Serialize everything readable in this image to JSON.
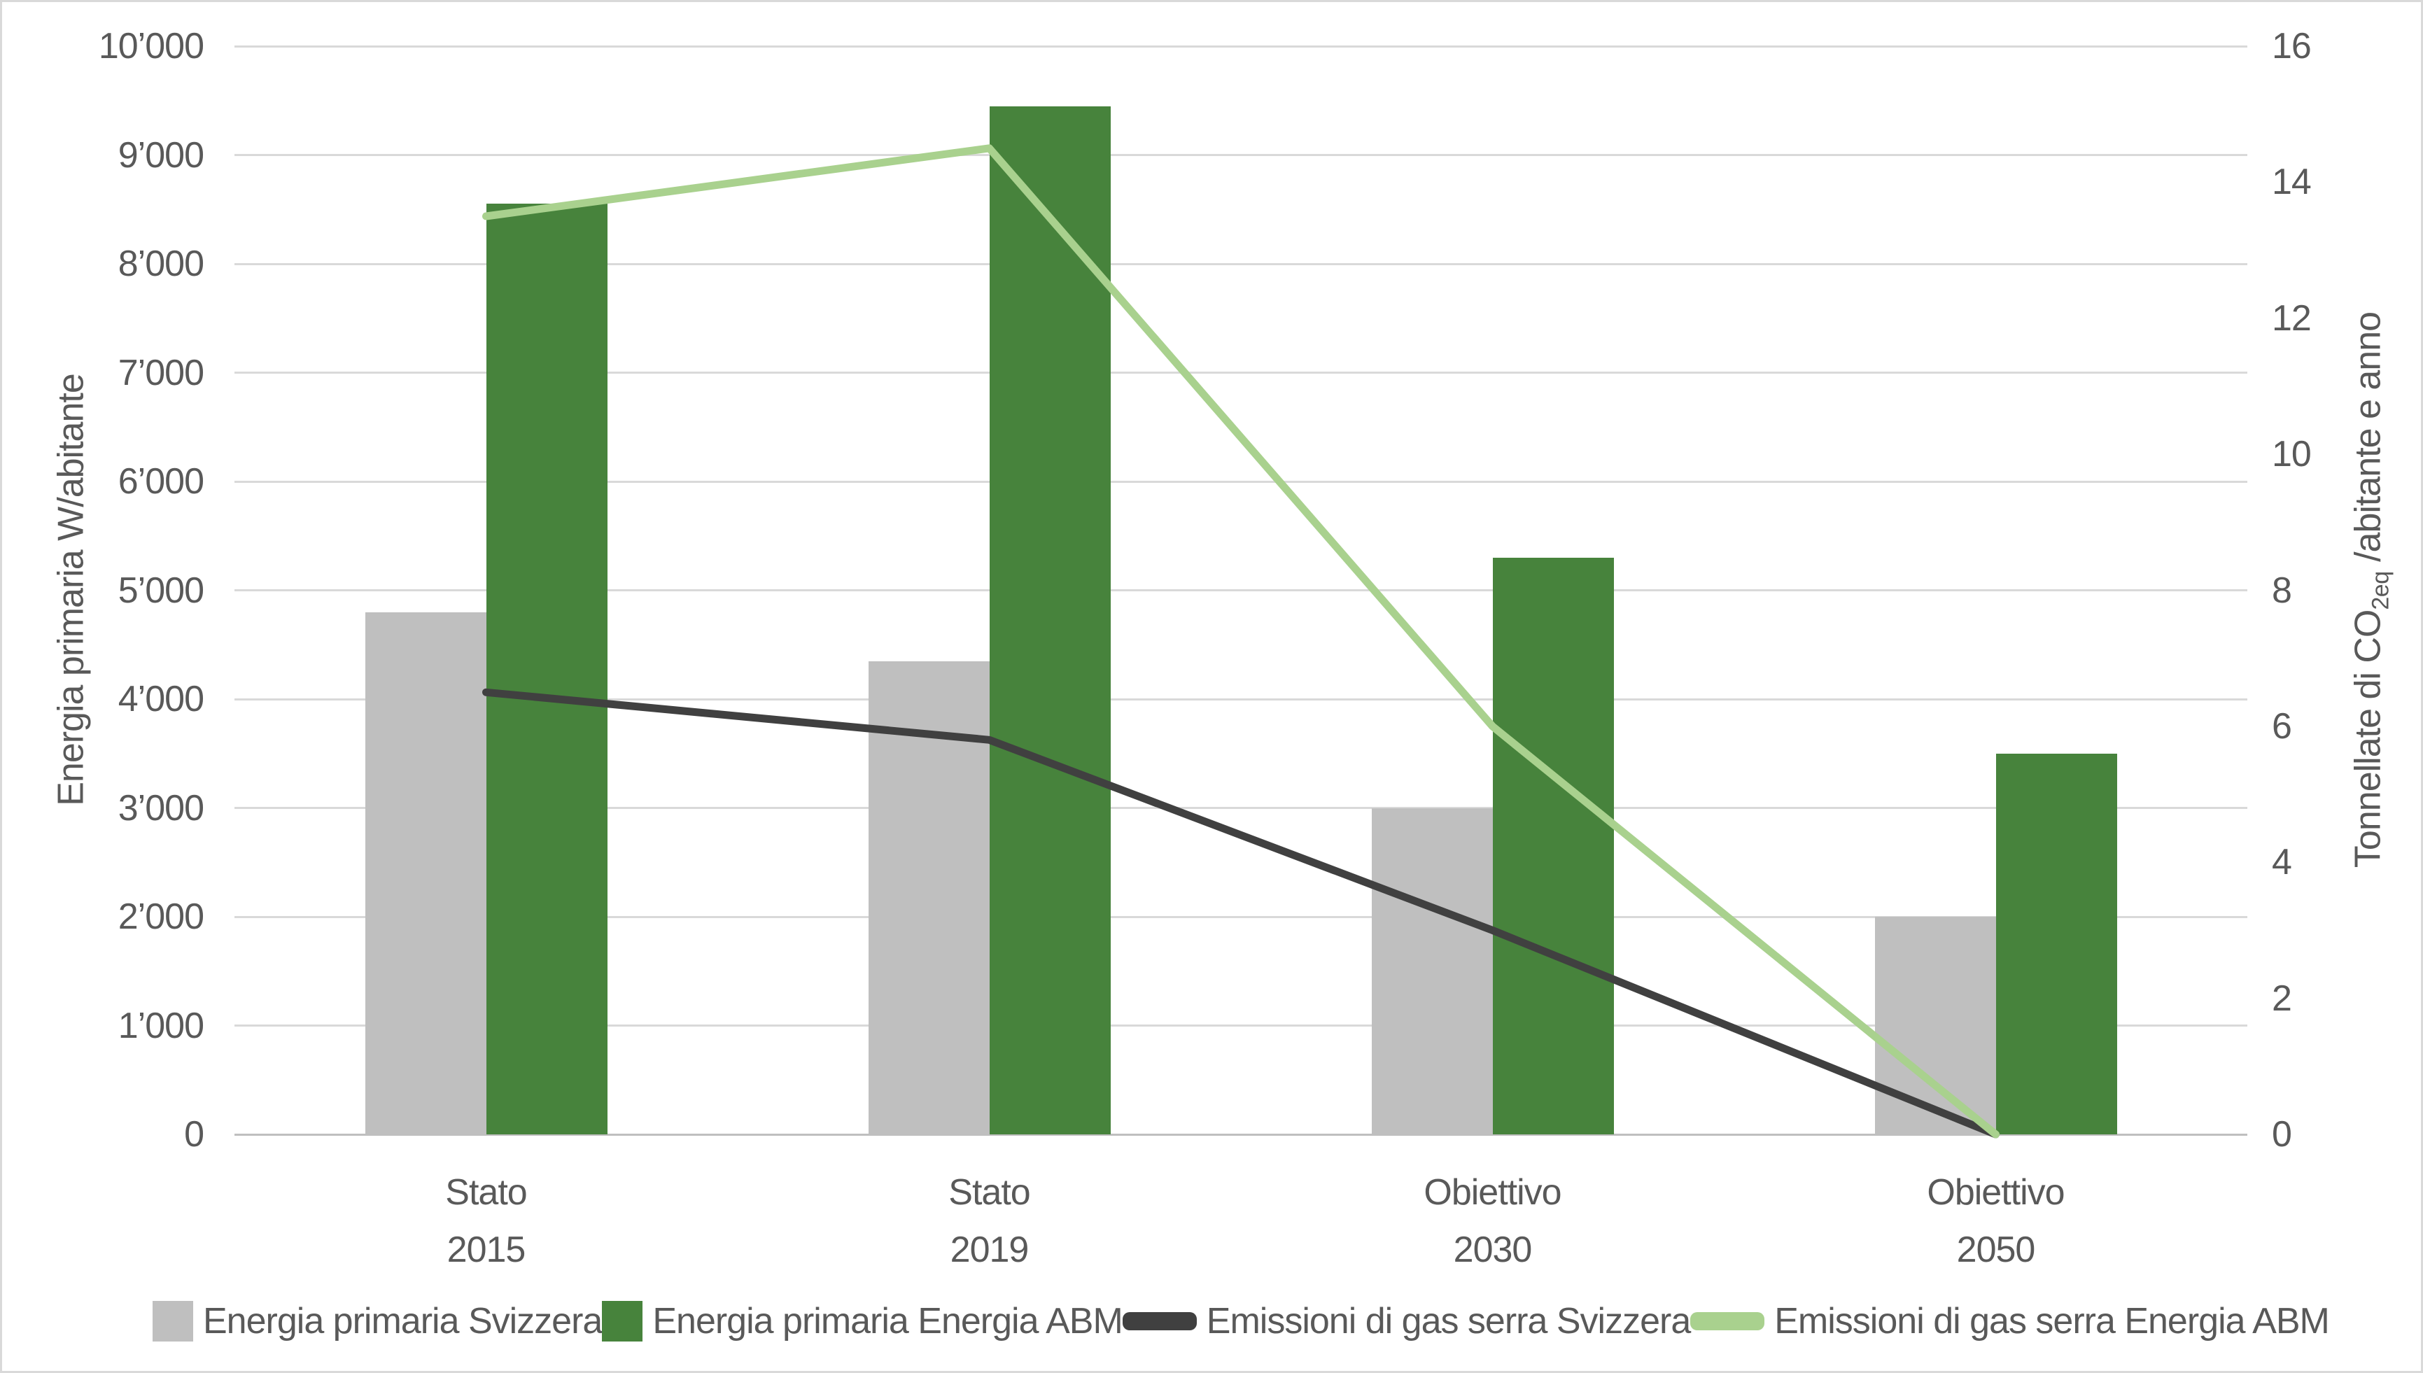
{
  "styles": {
    "background": "#FFFFFF",
    "border_color": "#D9D9D9",
    "grid_color": "#D9D9D9",
    "axis_line_color": "#BFBFBF",
    "text_color": "#595959"
  },
  "chart_data": {
    "type": "combo-bar-line",
    "grid": true,
    "legend_position": "bottom",
    "categories": [
      {
        "line1": "Stato",
        "line2": "2015"
      },
      {
        "line1": "Stato",
        "line2": "2019"
      },
      {
        "line1": "Obiettivo",
        "line2": "2030"
      },
      {
        "line1": "Obiettivo",
        "line2": "2050"
      }
    ],
    "bar_series": [
      {
        "name": "Energia primaria Svizzera",
        "color": "#BFBFBF",
        "axis": "left",
        "values": [
          4800,
          4350,
          3000,
          2000
        ]
      },
      {
        "name": "Energia primaria Energia ABM",
        "color": "#47833C",
        "axis": "left",
        "values": [
          8550,
          9450,
          5300,
          3500
        ]
      }
    ],
    "line_series": [
      {
        "name": "Emissioni di gas serra Svizzera",
        "color": "#404040",
        "axis": "right",
        "values": [
          6.5,
          5.8,
          3.0,
          0
        ]
      },
      {
        "name": "Emissioni di gas serra Energia ABM",
        "color": "#A9D18E",
        "axis": "right",
        "values": [
          13.5,
          14.5,
          6.0,
          0
        ]
      }
    ],
    "left_axis": {
      "title": "Energia primaria W/abitante",
      "min": 0,
      "max": 10000,
      "tick_step": 1000,
      "tick_labels": [
        "0",
        "1’000",
        "2’000",
        "3’000",
        "4’000",
        "5’000",
        "6’000",
        "7’000",
        "8’000",
        "9’000",
        "10’000"
      ]
    },
    "right_axis": {
      "title_prefix": "Tonnellate di CO",
      "title_sub": "2eq",
      "title_suffix": " /abitante e anno",
      "min": 0,
      "max": 16,
      "tick_step": 2,
      "tick_labels": [
        "0",
        "2",
        "4",
        "6",
        "8",
        "10",
        "12",
        "14",
        "16"
      ]
    }
  }
}
